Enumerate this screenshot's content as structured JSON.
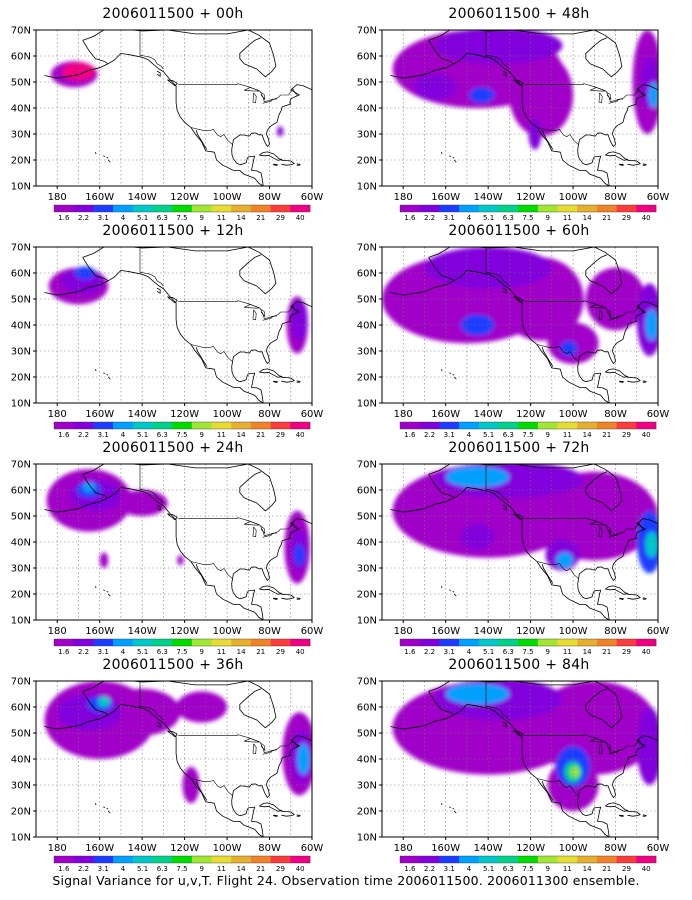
{
  "figure": {
    "caption": "Signal Variance for u,v,T. Flight 24. Observation time 2006011500. 2006011300 ensemble."
  },
  "axes": {
    "lat_ticks": [
      "10N",
      "20N",
      "30N",
      "40N",
      "50N",
      "60N",
      "70N"
    ],
    "lon_ticks": [
      "180",
      "160W",
      "140W",
      "120W",
      "100W",
      "80W",
      "60W"
    ]
  },
  "colorbar": {
    "labels": [
      "1.6",
      "2.2",
      "3.1",
      "4",
      "5.1",
      "6.3",
      "7.5",
      "9",
      "11",
      "14",
      "21",
      "29",
      "40"
    ],
    "colors": [
      "#a000c8",
      "#8200dc",
      "#1e3cff",
      "#00a0ff",
      "#00c8c8",
      "#00d28c",
      "#00dc00",
      "#a0e632",
      "#e6dc32",
      "#e6af2d",
      "#f08228",
      "#fa3c3c",
      "#f00082"
    ]
  },
  "chart_data": [
    {
      "type": "heatmap",
      "title": "2006011500 + 00h",
      "blobs": [
        {
          "lon": -172,
          "lat": 53,
          "rx": 11,
          "ry": 5,
          "v": 0
        },
        {
          "lon": -170,
          "lat": 54,
          "rx": 8,
          "ry": 3.5,
          "v": 12
        },
        {
          "lon": -75,
          "lat": 31,
          "rx": 1.5,
          "ry": 2,
          "v": 1
        }
      ]
    },
    {
      "type": "heatmap",
      "title": "2006011500 + 12h",
      "blobs": [
        {
          "lon": -170,
          "lat": 55,
          "rx": 14,
          "ry": 7,
          "v": 0
        },
        {
          "lon": -168,
          "lat": 57,
          "rx": 10,
          "ry": 5,
          "v": 1
        },
        {
          "lon": -167,
          "lat": 60,
          "rx": 5,
          "ry": 2.5,
          "v": 2
        },
        {
          "lon": -67,
          "lat": 40,
          "rx": 5,
          "ry": 11,
          "v": 0
        },
        {
          "lon": -66,
          "lat": 42,
          "rx": 4,
          "ry": 8,
          "v": 1
        }
      ]
    },
    {
      "type": "heatmap",
      "title": "2006011500 + 24h",
      "blobs": [
        {
          "lon": -165,
          "lat": 56,
          "rx": 20,
          "ry": 12,
          "v": 0
        },
        {
          "lon": -140,
          "lat": 55,
          "rx": 12,
          "ry": 5,
          "v": 0
        },
        {
          "lon": -162,
          "lat": 58,
          "rx": 12,
          "ry": 6,
          "v": 1
        },
        {
          "lon": -165,
          "lat": 60,
          "rx": 6,
          "ry": 3,
          "v": 2
        },
        {
          "lon": -165,
          "lat": 61,
          "rx": 3,
          "ry": 2,
          "v": 3
        },
        {
          "lon": -158,
          "lat": 33,
          "rx": 2,
          "ry": 3,
          "v": 0
        },
        {
          "lon": -122,
          "lat": 33,
          "rx": 1.5,
          "ry": 2,
          "v": 0
        },
        {
          "lon": -67,
          "lat": 38,
          "rx": 6,
          "ry": 14,
          "v": 0
        },
        {
          "lon": -66,
          "lat": 37,
          "rx": 4,
          "ry": 8,
          "v": 1
        },
        {
          "lon": -66,
          "lat": 35,
          "rx": 2.5,
          "ry": 4,
          "v": 2
        }
      ]
    },
    {
      "type": "heatmap",
      "title": "2006011500 + 36h",
      "blobs": [
        {
          "lon": -160,
          "lat": 55,
          "rx": 26,
          "ry": 15,
          "v": 0
        },
        {
          "lon": -140,
          "lat": 58,
          "rx": 18,
          "ry": 9,
          "v": 0
        },
        {
          "lon": -112,
          "lat": 60,
          "rx": 12,
          "ry": 6,
          "v": 0
        },
        {
          "lon": -117,
          "lat": 30,
          "rx": 4,
          "ry": 7,
          "v": 0
        },
        {
          "lon": -165,
          "lat": 58,
          "rx": 15,
          "ry": 7,
          "v": 1
        },
        {
          "lon": -160,
          "lat": 61,
          "rx": 6,
          "ry": 3,
          "v": 2
        },
        {
          "lon": -158,
          "lat": 62,
          "rx": 3,
          "ry": 2,
          "v": 4
        },
        {
          "lon": -66,
          "lat": 42,
          "rx": 8,
          "ry": 16,
          "v": 0
        },
        {
          "lon": -65,
          "lat": 41,
          "rx": 5,
          "ry": 10,
          "v": 1
        },
        {
          "lon": -64,
          "lat": 40,
          "rx": 3,
          "ry": 6,
          "v": 3
        }
      ]
    },
    {
      "type": "heatmap",
      "title": "2006011500 + 48h",
      "blobs": [
        {
          "lon": -145,
          "lat": 55,
          "rx": 40,
          "ry": 15,
          "v": 0
        },
        {
          "lon": -115,
          "lat": 45,
          "rx": 15,
          "ry": 16,
          "v": 0
        },
        {
          "lon": -135,
          "lat": 64,
          "rx": 30,
          "ry": 7,
          "v": 1
        },
        {
          "lon": -165,
          "lat": 48,
          "rx": 10,
          "ry": 5,
          "v": 1
        },
        {
          "lon": -143,
          "lat": 45,
          "rx": 6,
          "ry": 3,
          "v": 2
        },
        {
          "lon": -118,
          "lat": 30,
          "rx": 3,
          "ry": 6,
          "v": 1
        },
        {
          "lon": -65,
          "lat": 50,
          "rx": 7,
          "ry": 20,
          "v": 0
        },
        {
          "lon": -64,
          "lat": 50,
          "rx": 4,
          "ry": 10,
          "v": 1
        },
        {
          "lon": -62,
          "lat": 45,
          "rx": 2.5,
          "ry": 5,
          "v": 3
        }
      ]
    },
    {
      "type": "heatmap",
      "title": "2006011500 + 60h",
      "blobs": [
        {
          "lon": -150,
          "lat": 50,
          "rx": 40,
          "ry": 17,
          "v": 0
        },
        {
          "lon": -115,
          "lat": 50,
          "rx": 20,
          "ry": 16,
          "v": 0
        },
        {
          "lon": -100,
          "lat": 33,
          "rx": 12,
          "ry": 8,
          "v": 0
        },
        {
          "lon": -140,
          "lat": 62,
          "rx": 30,
          "ry": 8,
          "v": 1
        },
        {
          "lon": -145,
          "lat": 40,
          "rx": 8,
          "ry": 4,
          "v": 2
        },
        {
          "lon": -102,
          "lat": 31,
          "rx": 4,
          "ry": 3,
          "v": 2
        },
        {
          "lon": -80,
          "lat": 50,
          "rx": 14,
          "ry": 12,
          "v": 0
        },
        {
          "lon": -64,
          "lat": 42,
          "rx": 6,
          "ry": 14,
          "v": 1
        },
        {
          "lon": -63,
          "lat": 40,
          "rx": 3,
          "ry": 6,
          "v": 3
        }
      ]
    },
    {
      "type": "heatmap",
      "title": "2006011500 + 72h",
      "blobs": [
        {
          "lon": -140,
          "lat": 52,
          "rx": 45,
          "ry": 18,
          "v": 0
        },
        {
          "lon": -90,
          "lat": 50,
          "rx": 30,
          "ry": 17,
          "v": 0
        },
        {
          "lon": -130,
          "lat": 64,
          "rx": 35,
          "ry": 7,
          "v": 1
        },
        {
          "lon": -145,
          "lat": 65,
          "rx": 15,
          "ry": 4,
          "v": 3
        },
        {
          "lon": -145,
          "lat": 42,
          "rx": 8,
          "ry": 5,
          "v": 1
        },
        {
          "lon": -105,
          "lat": 35,
          "rx": 8,
          "ry": 6,
          "v": 1
        },
        {
          "lon": -104,
          "lat": 33,
          "rx": 4,
          "ry": 3,
          "v": 3
        },
        {
          "lon": -64,
          "lat": 40,
          "rx": 6,
          "ry": 12,
          "v": 2
        },
        {
          "lon": -63,
          "lat": 39,
          "rx": 3,
          "ry": 5,
          "v": 4
        }
      ]
    },
    {
      "type": "heatmap",
      "title": "2006011500 + 84h",
      "blobs": [
        {
          "lon": -140,
          "lat": 52,
          "rx": 45,
          "ry": 18,
          "v": 0
        },
        {
          "lon": -90,
          "lat": 52,
          "rx": 30,
          "ry": 18,
          "v": 0
        },
        {
          "lon": -100,
          "lat": 30,
          "rx": 12,
          "ry": 10,
          "v": 0
        },
        {
          "lon": -135,
          "lat": 63,
          "rx": 30,
          "ry": 8,
          "v": 1
        },
        {
          "lon": -145,
          "lat": 65,
          "rx": 15,
          "ry": 4,
          "v": 3
        },
        {
          "lon": -100,
          "lat": 37,
          "rx": 8,
          "ry": 8,
          "v": 2
        },
        {
          "lon": -100,
          "lat": 35,
          "rx": 4,
          "ry": 4,
          "v": 5
        },
        {
          "lon": -99,
          "lat": 35,
          "rx": 2,
          "ry": 2,
          "v": 7
        },
        {
          "lon": -64,
          "lat": 45,
          "rx": 6,
          "ry": 15,
          "v": 1
        }
      ]
    }
  ]
}
